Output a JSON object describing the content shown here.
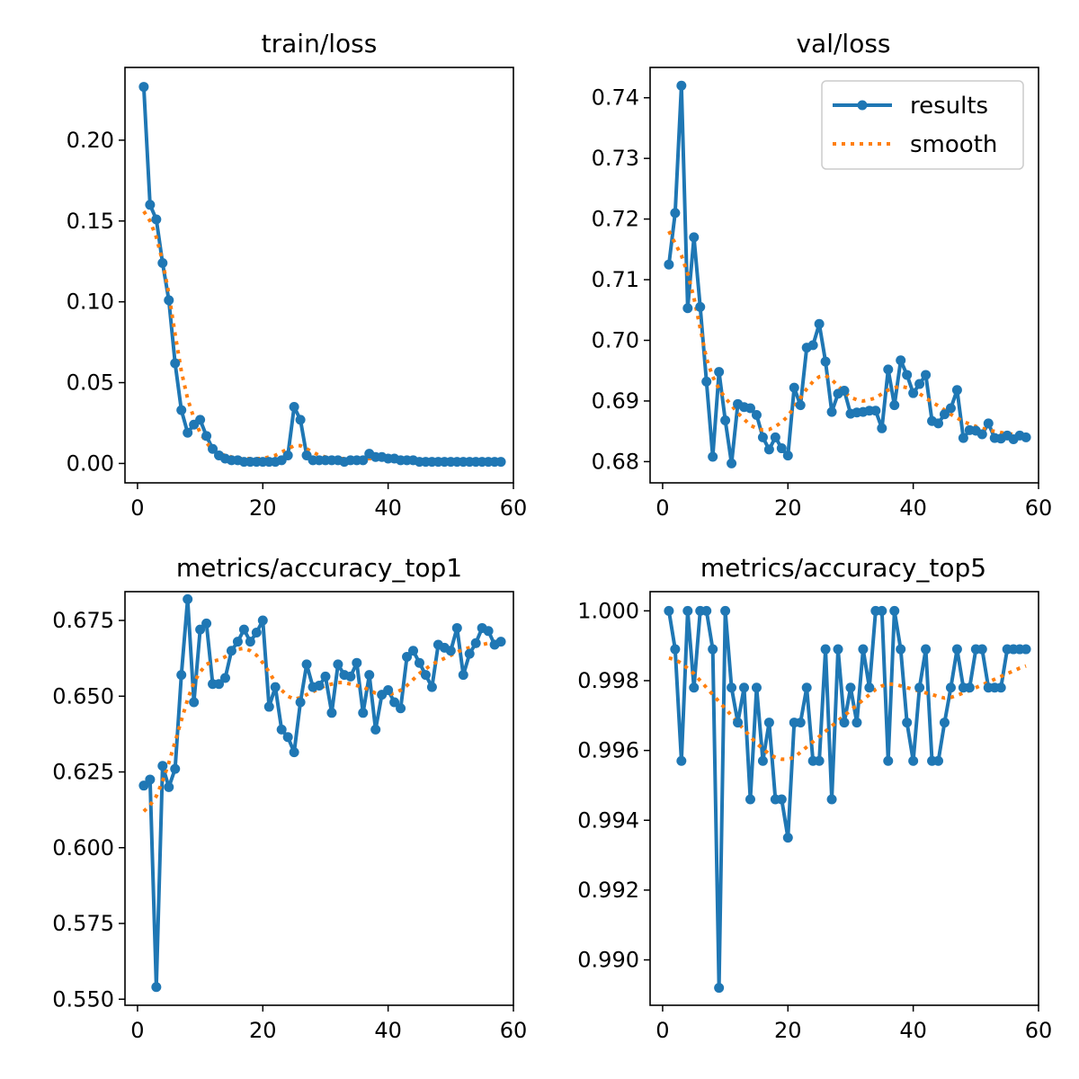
{
  "legend": {
    "results": "results",
    "smooth": "smooth"
  },
  "colors": {
    "results": "#1f77b4",
    "smooth": "#ff7f0e"
  },
  "chart_data": [
    {
      "type": "line",
      "title": "train/loss",
      "xlim": [
        -2,
        60
      ],
      "ylim": [
        -0.012,
        0.245
      ],
      "xticks": [
        0,
        20,
        40,
        60
      ],
      "yticks": [
        0.0,
        0.05,
        0.1,
        0.15,
        0.2
      ],
      "ytick_labels": [
        "0.00",
        "0.05",
        "0.10",
        "0.15",
        "0.20"
      ],
      "legend": false,
      "x": [
        1,
        2,
        3,
        4,
        5,
        6,
        7,
        8,
        9,
        10,
        11,
        12,
        13,
        14,
        15,
        16,
        17,
        18,
        19,
        20,
        21,
        22,
        23,
        24,
        25,
        26,
        27,
        28,
        29,
        30,
        31,
        32,
        33,
        34,
        35,
        36,
        37,
        38,
        39,
        40,
        41,
        42,
        43,
        44,
        45,
        46,
        47,
        48,
        49,
        50,
        51,
        52,
        53,
        54,
        55,
        56,
        57,
        58
      ],
      "series": [
        {
          "name": "results",
          "values": [
            0.233,
            0.16,
            0.151,
            0.124,
            0.101,
            0.062,
            0.033,
            0.019,
            0.024,
            0.027,
            0.017,
            0.009,
            0.005,
            0.003,
            0.002,
            0.002,
            0.001,
            0.001,
            0.001,
            0.001,
            0.001,
            0.001,
            0.002,
            0.005,
            0.035,
            0.027,
            0.005,
            0.002,
            0.002,
            0.002,
            0.002,
            0.002,
            0.001,
            0.002,
            0.002,
            0.002,
            0.006,
            0.004,
            0.004,
            0.003,
            0.003,
            0.002,
            0.002,
            0.002,
            0.001,
            0.001,
            0.001,
            0.001,
            0.001,
            0.001,
            0.001,
            0.001,
            0.001,
            0.001,
            0.001,
            0.001,
            0.001,
            0.001
          ]
        },
        {
          "name": "smooth",
          "values": [
            0.156,
            0.15,
            0.14,
            0.125,
            0.105,
            0.08,
            0.057,
            0.04,
            0.028,
            0.019,
            0.013,
            0.008,
            0.006,
            0.005,
            0.004,
            0.003,
            0.003,
            0.003,
            0.003,
            0.003,
            0.004,
            0.005,
            0.007,
            0.009,
            0.011,
            0.011,
            0.009,
            0.007,
            0.005,
            0.004,
            0.003,
            0.003,
            0.003,
            0.003,
            0.003,
            0.003,
            0.003,
            0.003,
            0.003,
            0.003,
            0.003,
            0.003,
            0.002,
            0.002,
            0.002,
            0.002,
            0.002,
            0.002,
            0.001,
            0.001,
            0.001,
            0.001,
            0.001,
            0.001,
            0.001,
            0.001,
            0.001,
            0.001
          ]
        }
      ]
    },
    {
      "type": "line",
      "title": "val/loss",
      "xlim": [
        -2,
        60
      ],
      "ylim": [
        0.6765,
        0.745
      ],
      "xticks": [
        0,
        20,
        40,
        60
      ],
      "yticks": [
        0.68,
        0.69,
        0.7,
        0.71,
        0.72,
        0.73,
        0.74
      ],
      "ytick_labels": [
        "0.68",
        "0.69",
        "0.70",
        "0.71",
        "0.72",
        "0.73",
        "0.74"
      ],
      "legend": "upper right",
      "x": [
        1,
        2,
        3,
        4,
        5,
        6,
        7,
        8,
        9,
        10,
        11,
        12,
        13,
        14,
        15,
        16,
        17,
        18,
        19,
        20,
        21,
        22,
        23,
        24,
        25,
        26,
        27,
        28,
        29,
        30,
        31,
        32,
        33,
        34,
        35,
        36,
        37,
        38,
        39,
        40,
        41,
        42,
        43,
        44,
        45,
        46,
        47,
        48,
        49,
        50,
        51,
        52,
        53,
        54,
        55,
        56,
        57,
        58
      ],
      "series": [
        {
          "name": "results",
          "values": [
            0.7125,
            0.721,
            0.742,
            0.7053,
            0.717,
            0.7055,
            0.6932,
            0.6808,
            0.6948,
            0.6868,
            0.6797,
            0.6895,
            0.689,
            0.6888,
            0.6877,
            0.684,
            0.682,
            0.684,
            0.6822,
            0.681,
            0.6922,
            0.6893,
            0.6988,
            0.6992,
            0.7027,
            0.6965,
            0.6882,
            0.6912,
            0.6917,
            0.6879,
            0.6881,
            0.6882,
            0.6884,
            0.6884,
            0.6855,
            0.6952,
            0.6893,
            0.6967,
            0.6943,
            0.6913,
            0.6928,
            0.6943,
            0.6867,
            0.6863,
            0.6878,
            0.6888,
            0.6918,
            0.6839,
            0.6852,
            0.6851,
            0.6845,
            0.6863,
            0.6839,
            0.6838,
            0.6843,
            0.6837,
            0.6843,
            0.684
          ]
        },
        {
          "name": "smooth",
          "values": [
            0.718,
            0.716,
            0.714,
            0.711,
            0.707,
            0.702,
            0.697,
            0.694,
            0.692,
            0.6905,
            0.6893,
            0.688,
            0.687,
            0.686,
            0.6855,
            0.6852,
            0.6853,
            0.6858,
            0.6865,
            0.6875,
            0.689,
            0.6905,
            0.692,
            0.6932,
            0.694,
            0.6942,
            0.6935,
            0.6925,
            0.6915,
            0.6906,
            0.6902,
            0.69,
            0.6902,
            0.6905,
            0.6912,
            0.6918,
            0.6922,
            0.6924,
            0.6922,
            0.6918,
            0.6912,
            0.6905,
            0.6898,
            0.6892,
            0.6885,
            0.6878,
            0.6872,
            0.6866,
            0.6862,
            0.6858,
            0.6855,
            0.6852,
            0.685,
            0.6848,
            0.6846,
            0.6845,
            0.6844,
            0.6843
          ]
        }
      ]
    },
    {
      "type": "line",
      "title": "metrics/accuracy_top1",
      "xlim": [
        -2,
        60
      ],
      "ylim": [
        0.548,
        0.6845
      ],
      "xticks": [
        0,
        20,
        40,
        60
      ],
      "yticks": [
        0.55,
        0.575,
        0.6,
        0.625,
        0.65,
        0.675
      ],
      "ytick_labels": [
        "0.550",
        "0.575",
        "0.600",
        "0.625",
        "0.650",
        "0.675"
      ],
      "legend": false,
      "x": [
        1,
        2,
        3,
        4,
        5,
        6,
        7,
        8,
        9,
        10,
        11,
        12,
        13,
        14,
        15,
        16,
        17,
        18,
        19,
        20,
        21,
        22,
        23,
        24,
        25,
        26,
        27,
        28,
        29,
        30,
        31,
        32,
        33,
        34,
        35,
        36,
        37,
        38,
        39,
        40,
        41,
        42,
        43,
        44,
        45,
        46,
        47,
        48,
        49,
        50,
        51,
        52,
        53,
        54,
        55,
        56,
        57,
        58
      ],
      "series": [
        {
          "name": "results",
          "values": [
            0.6205,
            0.6225,
            0.554,
            0.627,
            0.62,
            0.626,
            0.657,
            0.682,
            0.648,
            0.672,
            0.674,
            0.654,
            0.654,
            0.656,
            0.665,
            0.668,
            0.672,
            0.668,
            0.671,
            0.675,
            0.6465,
            0.653,
            0.639,
            0.6365,
            0.6315,
            0.648,
            0.6605,
            0.653,
            0.6535,
            0.6565,
            0.6445,
            0.6605,
            0.657,
            0.6565,
            0.661,
            0.6445,
            0.657,
            0.639,
            0.6505,
            0.652,
            0.648,
            0.646,
            0.663,
            0.665,
            0.661,
            0.657,
            0.653,
            0.667,
            0.666,
            0.665,
            0.6725,
            0.657,
            0.664,
            0.6675,
            0.6725,
            0.6715,
            0.667,
            0.668
          ]
        },
        {
          "name": "smooth",
          "values": [
            0.612,
            0.614,
            0.617,
            0.622,
            0.628,
            0.635,
            0.642,
            0.649,
            0.6545,
            0.658,
            0.6605,
            0.6615,
            0.662,
            0.663,
            0.6645,
            0.6655,
            0.6658,
            0.665,
            0.6635,
            0.661,
            0.658,
            0.6545,
            0.652,
            0.65,
            0.649,
            0.6495,
            0.6505,
            0.6515,
            0.6525,
            0.6535,
            0.654,
            0.6545,
            0.6545,
            0.654,
            0.6535,
            0.653,
            0.652,
            0.651,
            0.6505,
            0.6505,
            0.651,
            0.652,
            0.6535,
            0.6555,
            0.6575,
            0.659,
            0.6605,
            0.6615,
            0.6625,
            0.6635,
            0.6645,
            0.6655,
            0.666,
            0.6665,
            0.667,
            0.6675,
            0.668,
            0.668
          ]
        }
      ]
    },
    {
      "type": "line",
      "title": "metrics/accuracy_top5",
      "xlim": [
        -2,
        60
      ],
      "ylim": [
        0.9887,
        1.00055
      ],
      "xticks": [
        0,
        20,
        40,
        60
      ],
      "yticks": [
        0.99,
        0.992,
        0.994,
        0.996,
        0.998,
        1.0
      ],
      "ytick_labels": [
        "0.990",
        "0.992",
        "0.994",
        "0.996",
        "0.998",
        "1.000"
      ],
      "legend": false,
      "x": [
        1,
        2,
        3,
        4,
        5,
        6,
        7,
        8,
        9,
        10,
        11,
        12,
        13,
        14,
        15,
        16,
        17,
        18,
        19,
        20,
        21,
        22,
        23,
        24,
        25,
        26,
        27,
        28,
        29,
        30,
        31,
        32,
        33,
        34,
        35,
        36,
        37,
        38,
        39,
        40,
        41,
        42,
        43,
        44,
        45,
        46,
        47,
        48,
        49,
        50,
        51,
        52,
        53,
        54,
        55,
        56,
        57,
        58
      ],
      "series": [
        {
          "name": "results",
          "values": [
            1.0,
            0.9989,
            0.9957,
            1.0,
            0.9978,
            1.0,
            1.0,
            0.9989,
            0.9892,
            1.0,
            0.9978,
            0.9968,
            0.9978,
            0.9946,
            0.9978,
            0.9957,
            0.9968,
            0.9946,
            0.9946,
            0.9935,
            0.9968,
            0.9968,
            0.9978,
            0.9957,
            0.9957,
            0.9989,
            0.9946,
            0.9989,
            0.9968,
            0.9978,
            0.9968,
            0.9989,
            0.9978,
            1.0,
            1.0,
            0.9957,
            1.0,
            0.9989,
            0.9968,
            0.9957,
            0.9978,
            0.9989,
            0.9957,
            0.9957,
            0.9968,
            0.9978,
            0.9989,
            0.9978,
            0.9978,
            0.9989,
            0.9989,
            0.9978,
            0.9978,
            0.9978,
            0.9989,
            0.9989,
            0.9989,
            0.9989
          ]
        },
        {
          "name": "smooth",
          "values": [
            0.99865,
            0.9986,
            0.9985,
            0.99835,
            0.9982,
            0.998,
            0.9978,
            0.9976,
            0.9974,
            0.9972,
            0.997,
            0.9968,
            0.9966,
            0.9964,
            0.9962,
            0.99605,
            0.9959,
            0.9958,
            0.99575,
            0.99575,
            0.9958,
            0.99595,
            0.9961,
            0.99625,
            0.9964,
            0.99655,
            0.9967,
            0.99685,
            0.997,
            0.99715,
            0.9973,
            0.99745,
            0.9976,
            0.99775,
            0.99785,
            0.9979,
            0.9979,
            0.99785,
            0.9978,
            0.99775,
            0.9977,
            0.99765,
            0.9976,
            0.99755,
            0.9975,
            0.99752,
            0.99758,
            0.99765,
            0.99772,
            0.9978,
            0.99788,
            0.99796,
            0.99804,
            0.99812,
            0.9982,
            0.99828,
            0.99836,
            0.99842
          ]
        }
      ]
    }
  ]
}
